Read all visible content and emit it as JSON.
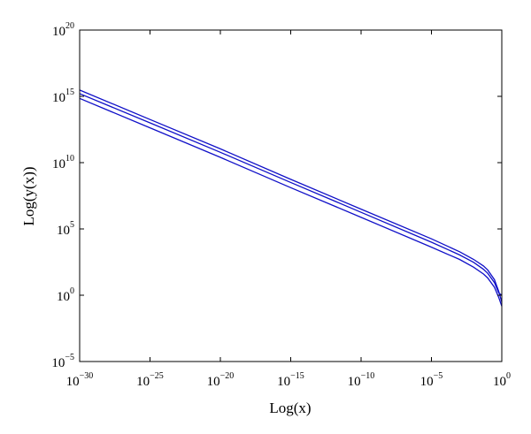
{
  "chart_data": {
    "type": "line",
    "title": "",
    "xlabel": "Log(x)",
    "ylabel": "Log(y(x))",
    "x_scale": "log",
    "y_scale": "log",
    "xlim": [
      1e-30,
      1
    ],
    "ylim": [
      1e-05,
      1e+20
    ],
    "grid": false,
    "legend": "none",
    "line_color": "#1010c8",
    "x_ticks": [
      {
        "base": "10",
        "exp": "−30",
        "value": 1e-30
      },
      {
        "base": "10",
        "exp": "−25",
        "value": 1e-25
      },
      {
        "base": "10",
        "exp": "−20",
        "value": 1e-20
      },
      {
        "base": "10",
        "exp": "−15",
        "value": 1e-15
      },
      {
        "base": "10",
        "exp": "−10",
        "value": 1e-10
      },
      {
        "base": "10",
        "exp": "−5",
        "value": 1e-05
      },
      {
        "base": "10",
        "exp": "0",
        "value": 1
      }
    ],
    "y_ticks": [
      {
        "base": "10",
        "exp": "−5",
        "value": 1e-05
      },
      {
        "base": "10",
        "exp": "0",
        "value": 1
      },
      {
        "base": "10",
        "exp": "5",
        "value": 100000.0
      },
      {
        "base": "10",
        "exp": "10",
        "value": 10000000000.0
      },
      {
        "base": "10",
        "exp": "15",
        "value": 1000000000000000.0
      },
      {
        "base": "10",
        "exp": "20",
        "value": 1e+20
      }
    ],
    "series": [
      {
        "x": [
          1e-30,
          1e-25,
          1e-20,
          1e-15,
          1e-10,
          1e-05,
          0.001,
          0.01,
          0.05,
          0.1,
          0.3,
          0.6,
          1
        ],
        "y": [
          3000000000000000.0,
          18000000000000.0,
          110000000000.0,
          550000000.0,
          3100000.0,
          18000.0,
          1900.0,
          500.0,
          160.0,
          80.0,
          15.0,
          2.0,
          0.3
        ]
      },
      {
        "x": [
          1e-30,
          1e-25,
          1e-20,
          1e-15,
          1e-10,
          1e-05,
          0.001,
          0.01,
          0.05,
          0.1,
          0.3,
          0.6,
          1
        ],
        "y": [
          1600000000000000.0,
          10000000000000.0,
          60000000000.0,
          320000000.0,
          1800000.0,
          10000.0,
          1100.0,
          300.0,
          90.0,
          45.0,
          9.0,
          1.5,
          1.0
        ]
      },
      {
        "x": [
          1e-30,
          1e-25,
          1e-20,
          1e-15,
          1e-10,
          1e-05,
          0.001,
          0.01,
          0.05,
          0.1,
          0.3,
          0.6,
          1
        ],
        "y": [
          700000000000000.0,
          4200000000000.0,
          25000000000.0,
          130000000.0,
          750000.0,
          4200.0,
          500.0,
          130.0,
          40.0,
          20.0,
          4.0,
          0.7,
          0.15
        ]
      }
    ]
  }
}
